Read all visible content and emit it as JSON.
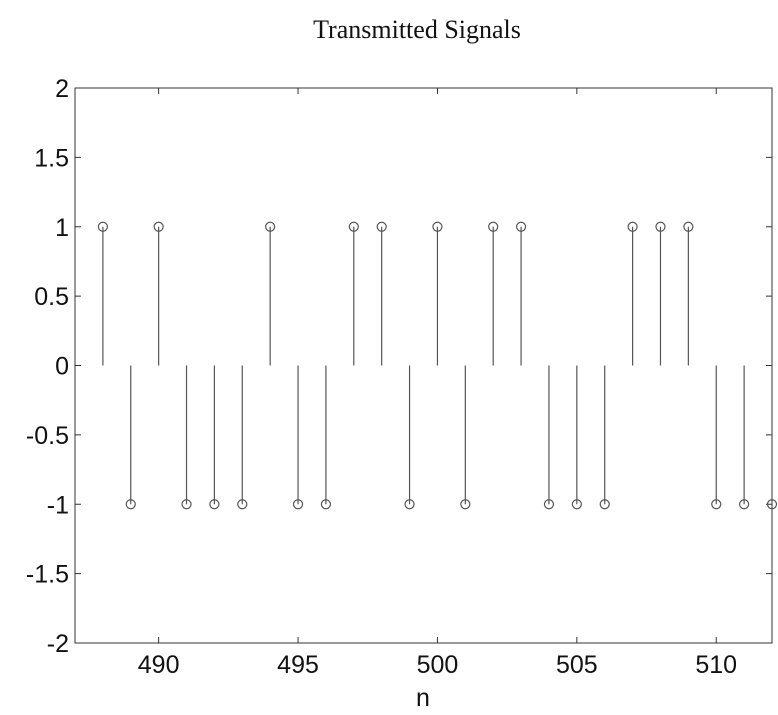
{
  "chart_data": {
    "type": "stem",
    "title": "Transmitted Signals",
    "xlabel": "n",
    "x": [
      488,
      489,
      490,
      491,
      492,
      493,
      494,
      495,
      496,
      497,
      498,
      499,
      500,
      501,
      502,
      503,
      504,
      505,
      506,
      507,
      508,
      509,
      510,
      511,
      512
    ],
    "values": [
      1,
      -1,
      1,
      -1,
      -1,
      -1,
      1,
      -1,
      -1,
      1,
      1,
      -1,
      1,
      -1,
      1,
      1,
      -1,
      -1,
      -1,
      1,
      1,
      1,
      -1,
      -1,
      -1
    ],
    "color": "#555555",
    "xlim": [
      487,
      512
    ],
    "ylim": [
      -2,
      2
    ],
    "xticks": [
      490,
      495,
      500,
      505,
      510
    ],
    "yticks": [
      -2,
      -1.5,
      -1,
      -0.5,
      0,
      0.5,
      1,
      1.5,
      2
    ]
  }
}
